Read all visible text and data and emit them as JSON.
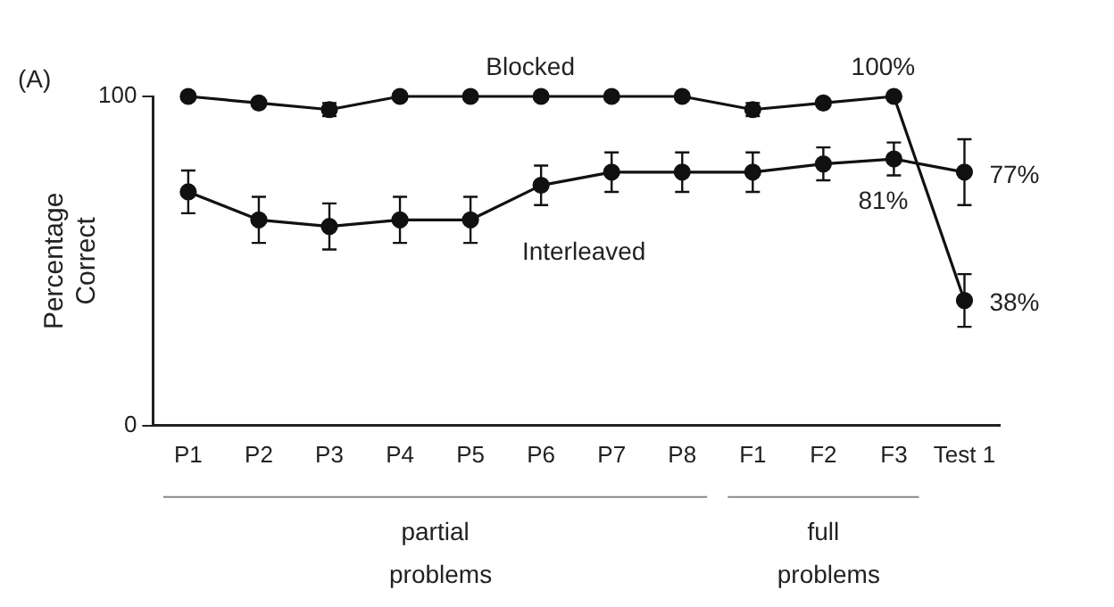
{
  "chart_data": {
    "type": "line",
    "ylabel": "Percentage Correct",
    "categories": [
      "P1",
      "P2",
      "P3",
      "P4",
      "P5",
      "P6",
      "P7",
      "P8",
      "F1",
      "F2",
      "F3",
      "Test 1"
    ],
    "series": [
      {
        "name": "Blocked",
        "color": "#111111",
        "values": [
          100,
          98,
          96,
          100,
          100,
          100,
          100,
          100,
          96,
          98,
          100,
          38
        ],
        "errors": [
          null,
          1,
          2,
          null,
          null,
          null,
          null,
          null,
          2,
          1,
          null,
          8
        ],
        "value_labels": [
          null,
          null,
          null,
          null,
          null,
          null,
          null,
          null,
          null,
          null,
          "100%",
          "38%"
        ]
      },
      {
        "name": "Interleaved",
        "color": "#111111",
        "values": [
          71,
          62.5,
          60.5,
          62.5,
          62.5,
          73,
          77,
          77,
          77,
          79.5,
          81,
          77
        ],
        "errors": [
          6.5,
          7,
          7,
          7,
          7,
          6,
          6,
          6,
          6,
          5,
          5,
          10
        ],
        "value_labels": [
          null,
          null,
          null,
          null,
          null,
          null,
          null,
          null,
          null,
          null,
          "81%",
          "77%"
        ]
      }
    ],
    "ylim": [
      0,
      100
    ],
    "yticks": [
      0,
      100
    ],
    "grid": false,
    "legend": false,
    "marker": "circle",
    "line_style": "solid",
    "annotations": [
      "(A)",
      "partial problems",
      "full problems"
    ]
  }
}
